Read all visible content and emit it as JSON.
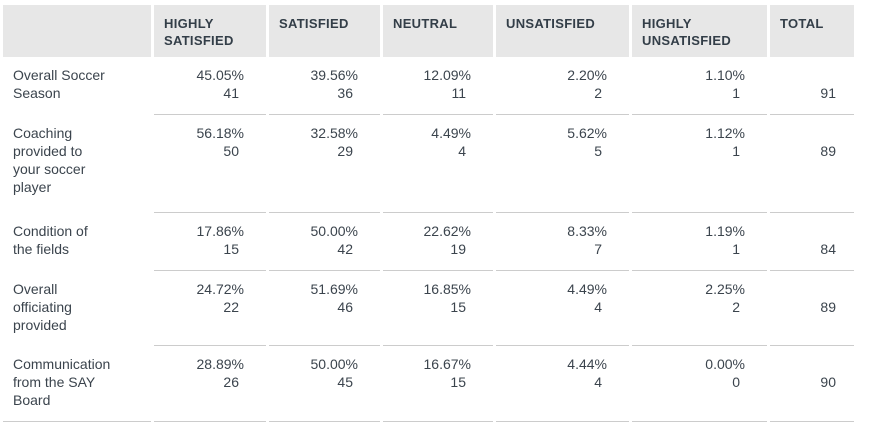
{
  "colors": {
    "header_bg": "#e7e7e7",
    "header_text": "#333e48",
    "body_text": "#3b444d",
    "border": "#cccccc",
    "page_bg": "#ffffff"
  },
  "chart_data": {
    "type": "table",
    "title": "",
    "columns": [
      "HIGHLY SATISFIED",
      "SATISFIED",
      "NEUTRAL",
      "UNSATISFIED",
      "HIGHLY UNSATISFIED",
      "TOTAL"
    ],
    "rows": [
      {
        "label": "Overall Soccer Season",
        "values": [
          {
            "percent": "45.05%",
            "count": "41"
          },
          {
            "percent": "39.56%",
            "count": "36"
          },
          {
            "percent": "12.09%",
            "count": "11"
          },
          {
            "percent": "2.20%",
            "count": "2"
          },
          {
            "percent": "1.10%",
            "count": "1"
          }
        ],
        "total": "91"
      },
      {
        "label": "Coaching provided to your soccer player",
        "values": [
          {
            "percent": "56.18%",
            "count": "50"
          },
          {
            "percent": "32.58%",
            "count": "29"
          },
          {
            "percent": "4.49%",
            "count": "4"
          },
          {
            "percent": "5.62%",
            "count": "5"
          },
          {
            "percent": "1.12%",
            "count": "1"
          }
        ],
        "total": "89"
      },
      {
        "label": "Condition of the fields",
        "values": [
          {
            "percent": "17.86%",
            "count": "15"
          },
          {
            "percent": "50.00%",
            "count": "42"
          },
          {
            "percent": "22.62%",
            "count": "19"
          },
          {
            "percent": "8.33%",
            "count": "7"
          },
          {
            "percent": "1.19%",
            "count": "1"
          }
        ],
        "total": "84"
      },
      {
        "label": "Overall officiating provided",
        "values": [
          {
            "percent": "24.72%",
            "count": "22"
          },
          {
            "percent": "51.69%",
            "count": "46"
          },
          {
            "percent": "16.85%",
            "count": "15"
          },
          {
            "percent": "4.49%",
            "count": "4"
          },
          {
            "percent": "2.25%",
            "count": "2"
          }
        ],
        "total": "89"
      },
      {
        "label": "Communication from the SAY Board",
        "values": [
          {
            "percent": "28.89%",
            "count": "26"
          },
          {
            "percent": "50.00%",
            "count": "45"
          },
          {
            "percent": "16.67%",
            "count": "15"
          },
          {
            "percent": "4.44%",
            "count": "4"
          },
          {
            "percent": "0.00%",
            "count": "0"
          }
        ],
        "total": "90"
      }
    ]
  }
}
